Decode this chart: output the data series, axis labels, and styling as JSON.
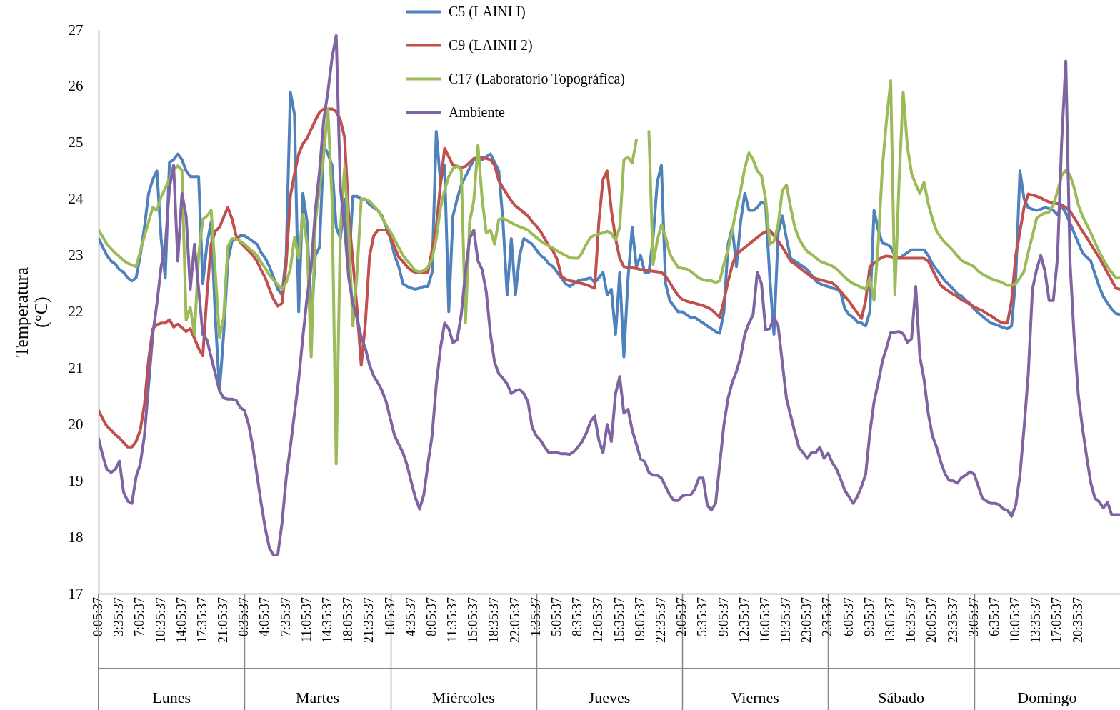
{
  "chart_data": {
    "type": "line",
    "ylabel": "Temperatura (°C)",
    "ylim": [
      17,
      27
    ],
    "yticks": [
      17,
      18,
      19,
      20,
      21,
      22,
      23,
      24,
      25,
      26,
      27
    ],
    "categories": [
      "0:05:37",
      null,
      null,
      null,
      null,
      "3:35:37",
      null,
      null,
      null,
      null,
      "7:05:37",
      null,
      null,
      null,
      null,
      "10:35:37",
      null,
      null,
      null,
      null,
      "14:05:37",
      null,
      null,
      null,
      null,
      "17:35:37",
      null,
      null,
      null,
      null,
      "21:05:37",
      null,
      null,
      null,
      null,
      "0:35:37",
      null,
      null,
      null,
      null,
      "4:05:37",
      null,
      null,
      null,
      null,
      "7:35:37",
      null,
      null,
      null,
      null,
      "11:05:37",
      null,
      null,
      null,
      null,
      "14:35:37",
      null,
      null,
      null,
      null,
      "18:05:37",
      null,
      null,
      null,
      null,
      "21:35:37",
      null,
      null,
      null,
      null,
      "1:05:37",
      null,
      null,
      null,
      null,
      "4:35:37",
      null,
      null,
      null,
      null,
      "8:05:37",
      null,
      null,
      null,
      null,
      "11:35:37",
      null,
      null,
      null,
      null,
      "15:05:37",
      null,
      null,
      null,
      null,
      "18:35:37",
      null,
      null,
      null,
      null,
      "22:05:37",
      null,
      null,
      null,
      null,
      "1:35:37",
      null,
      null,
      null,
      null,
      "5:05:37",
      null,
      null,
      null,
      null,
      "8:35:37",
      null,
      null,
      null,
      null,
      "12:05:37",
      null,
      null,
      null,
      null,
      "15:35:37",
      null,
      null,
      null,
      null,
      "19:05:37",
      null,
      null,
      null,
      null,
      "22:35:37",
      null,
      null,
      null,
      null,
      "2:05:37",
      null,
      null,
      null,
      null,
      "5:35:37",
      null,
      null,
      null,
      null,
      "9:05:37",
      null,
      null,
      null,
      null,
      "12:35:37",
      null,
      null,
      null,
      null,
      "16:05:37",
      null,
      null,
      null,
      null,
      "19:35:37",
      null,
      null,
      null,
      null,
      "23:05:37",
      null,
      null,
      null,
      null,
      "2:35:37",
      null,
      null,
      null,
      null,
      "6:05:37",
      null,
      null,
      null,
      null,
      "9:35:37",
      null,
      null,
      null,
      null,
      "13:05:37",
      null,
      null,
      null,
      null,
      "16:35:37",
      null,
      null,
      null,
      null,
      "20:05:37",
      null,
      null,
      null,
      null,
      "23:35:37",
      null,
      null,
      null,
      null,
      "3:05:37",
      null,
      null,
      null,
      null,
      "6:35:37",
      null,
      null,
      null,
      null,
      "10:05:37",
      null,
      null,
      null,
      null,
      "13:35:37",
      null,
      null,
      null,
      null,
      "17:05:37",
      null,
      null,
      null,
      null,
      "20:35:37",
      null,
      null,
      null,
      null,
      null,
      null,
      null,
      null,
      null,
      null
    ],
    "annotations": [
      "Lunes",
      "Martes",
      "Miércoles",
      "Jueves",
      "Viernes",
      "Sábado",
      "Domingo"
    ],
    "legend": "top",
    "line_style": "solid",
    "series": [
      {
        "name": "C5 (LAINI I)",
        "color": "#4f81bd",
        "values": [
          23.3,
          23.15,
          23.0,
          22.9,
          22.85,
          22.75,
          22.7,
          22.6,
          22.55,
          22.6,
          23.0,
          23.5,
          24.1,
          24.35,
          24.5,
          23.3,
          22.6,
          24.65,
          24.7,
          24.8,
          24.7,
          24.5,
          24.4,
          24.4,
          24.4,
          22.5,
          23.2,
          23.6,
          21.9,
          20.6,
          21.6,
          22.9,
          23.25,
          23.3,
          23.35,
          23.35,
          23.3,
          23.25,
          23.2,
          23.05,
          22.95,
          22.8,
          22.6,
          22.4,
          22.3,
          23.0,
          25.9,
          25.5,
          22.0,
          24.1,
          23.6,
          21.8,
          23.0,
          23.15,
          24.95,
          24.8,
          24.6,
          23.5,
          23.3,
          24.0,
          22.8,
          24.05,
          24.05,
          24.0,
          24.0,
          23.9,
          23.85,
          23.8,
          23.7,
          23.5,
          23.3,
          23.0,
          22.8,
          22.5,
          22.45,
          22.42,
          22.4,
          22.42,
          22.45,
          22.45,
          22.7,
          25.2,
          24.3,
          24.6,
          22.0,
          23.7,
          24.0,
          24.25,
          24.4,
          24.55,
          24.7,
          24.7,
          24.7,
          24.75,
          24.8,
          24.65,
          24.5,
          23.6,
          22.3,
          23.3,
          22.3,
          23.0,
          23.3,
          23.25,
          23.2,
          23.1,
          23.0,
          22.95,
          22.85,
          22.8,
          22.7,
          22.6,
          22.5,
          22.45,
          22.5,
          22.55,
          22.57,
          22.58,
          22.6,
          22.52,
          22.6,
          22.7,
          22.3,
          22.4,
          21.6,
          22.7,
          21.2,
          22.6,
          23.5,
          22.8,
          23.0,
          22.7,
          22.7,
          23.3,
          24.3,
          24.6,
          22.5,
          22.2,
          22.1,
          22.0,
          22.0,
          21.95,
          21.9,
          21.9,
          21.85,
          21.8,
          21.75,
          21.7,
          21.65,
          21.62,
          22.0,
          23.2,
          23.5,
          22.8,
          23.6,
          24.1,
          23.8,
          23.8,
          23.85,
          23.95,
          23.9,
          22.6,
          21.6,
          23.4,
          23.7,
          23.3,
          22.95,
          22.9,
          22.85,
          22.8,
          22.75,
          22.65,
          22.55,
          22.5,
          22.47,
          22.45,
          22.42,
          22.4,
          22.35,
          22.05,
          21.95,
          21.9,
          21.82,
          21.8,
          21.75,
          22.0,
          23.8,
          23.45,
          23.22,
          23.2,
          23.15,
          23.0,
          22.95,
          23.0,
          23.05,
          23.1,
          23.1,
          23.1,
          23.1,
          23.0,
          22.85,
          22.75,
          22.65,
          22.55,
          22.48,
          22.4,
          22.32,
          22.28,
          22.2,
          22.15,
          22.05,
          21.98,
          21.92,
          21.86,
          21.8,
          21.78,
          21.75,
          21.72,
          21.7,
          21.75,
          22.6,
          24.5,
          24.0,
          23.85,
          23.82,
          23.8,
          23.82,
          23.85,
          23.83,
          23.8,
          23.72,
          23.88,
          23.75,
          23.58,
          23.4,
          23.22,
          23.05,
          22.97,
          22.9,
          22.67,
          22.45,
          22.27,
          22.15,
          22.05,
          21.97,
          21.95
        ]
      },
      {
        "name": "C9 (LAINII 2)",
        "color": "#c0504d",
        "values": [
          20.25,
          20.1,
          19.97,
          19.9,
          19.82,
          19.76,
          19.68,
          19.6,
          19.6,
          19.7,
          19.9,
          20.35,
          21.15,
          21.7,
          21.77,
          21.8,
          21.8,
          21.86,
          21.73,
          21.78,
          21.72,
          21.65,
          21.7,
          21.53,
          21.35,
          21.22,
          22.3,
          23.2,
          23.43,
          23.5,
          23.68,
          23.85,
          23.65,
          23.35,
          23.23,
          23.15,
          23.08,
          23.0,
          22.9,
          22.74,
          22.6,
          22.4,
          22.22,
          22.1,
          22.15,
          22.85,
          24.05,
          24.45,
          24.8,
          24.98,
          25.08,
          25.24,
          25.4,
          25.54,
          25.6,
          25.6,
          25.6,
          25.55,
          25.4,
          25.1,
          23.7,
          22.9,
          22.05,
          21.05,
          21.8,
          22.99,
          23.35,
          23.45,
          23.45,
          23.45,
          23.33,
          23.15,
          22.97,
          22.89,
          22.8,
          22.73,
          22.7,
          22.7,
          22.7,
          22.7,
          23.1,
          23.5,
          24.25,
          24.9,
          24.75,
          24.6,
          24.58,
          24.56,
          24.58,
          24.65,
          24.72,
          24.74,
          24.73,
          24.72,
          24.7,
          24.6,
          24.33,
          24.2,
          24.08,
          23.97,
          23.88,
          23.82,
          23.76,
          23.7,
          23.6,
          23.52,
          23.43,
          23.3,
          23.17,
          23.08,
          22.93,
          22.63,
          22.58,
          22.55,
          22.54,
          22.52,
          22.5,
          22.48,
          22.45,
          22.42,
          23.6,
          24.35,
          24.5,
          23.8,
          23.3,
          22.95,
          22.8,
          22.79,
          22.78,
          22.77,
          22.75,
          22.74,
          22.73,
          22.72,
          22.71,
          22.7,
          22.63,
          22.52,
          22.4,
          22.29,
          22.22,
          22.19,
          22.17,
          22.15,
          22.13,
          22.11,
          22.08,
          22.04,
          21.97,
          21.9,
          22.2,
          22.54,
          22.83,
          23.03,
          23.08,
          23.14,
          23.2,
          23.26,
          23.32,
          23.38,
          23.42,
          23.45,
          23.35,
          23.26,
          23.15,
          23.03,
          22.9,
          22.85,
          22.79,
          22.73,
          22.68,
          22.62,
          22.59,
          22.57,
          22.55,
          22.53,
          22.51,
          22.45,
          22.36,
          22.27,
          22.19,
          22.08,
          21.98,
          21.88,
          22.2,
          22.8,
          22.86,
          22.92,
          22.97,
          22.99,
          22.98,
          22.96,
          22.95,
          22.95,
          22.95,
          22.95,
          22.95,
          22.95,
          22.95,
          22.9,
          22.75,
          22.6,
          22.47,
          22.41,
          22.36,
          22.31,
          22.27,
          22.21,
          22.18,
          22.13,
          22.09,
          22.05,
          22.02,
          21.97,
          21.93,
          21.88,
          21.83,
          21.8,
          21.8,
          22.2,
          23.0,
          23.42,
          23.86,
          24.09,
          24.07,
          24.05,
          24.02,
          23.98,
          23.95,
          23.93,
          23.92,
          23.9,
          23.85,
          23.79,
          23.67,
          23.55,
          23.43,
          23.32,
          23.2,
          23.08,
          22.96,
          22.83,
          22.69,
          22.56,
          22.42,
          22.4
        ]
      },
      {
        "name": "C17 (Laboratorio Topográfica)",
        "color": "#9bbb59",
        "values": [
          23.45,
          23.33,
          23.2,
          23.12,
          23.04,
          22.98,
          22.91,
          22.86,
          22.83,
          22.8,
          23.07,
          23.34,
          23.6,
          23.85,
          23.8,
          24.04,
          24.19,
          24.36,
          24.52,
          24.59,
          24.51,
          21.85,
          22.08,
          21.6,
          23.0,
          23.64,
          23.7,
          23.8,
          22.7,
          21.55,
          21.9,
          23.16,
          23.3,
          23.29,
          23.25,
          23.2,
          23.13,
          23.07,
          23.0,
          22.88,
          22.77,
          22.65,
          22.56,
          22.48,
          22.4,
          22.52,
          22.76,
          23.32,
          22.95,
          23.73,
          23.2,
          21.2,
          23.6,
          24.2,
          24.8,
          25.6,
          24.0,
          19.3,
          23.45,
          24.55,
          23.4,
          21.75,
          22.7,
          24.0,
          24.0,
          23.96,
          23.88,
          23.8,
          23.67,
          23.54,
          23.42,
          23.28,
          23.14,
          23.0,
          22.91,
          22.82,
          22.73,
          22.71,
          22.73,
          22.79,
          22.94,
          23.3,
          23.84,
          24.16,
          24.4,
          24.54,
          24.59,
          24.51,
          21.8,
          23.59,
          23.97,
          24.95,
          24.0,
          23.4,
          23.45,
          23.2,
          23.64,
          23.66,
          23.62,
          23.58,
          23.54,
          23.51,
          23.48,
          23.45,
          23.38,
          23.32,
          23.26,
          23.21,
          23.17,
          23.13,
          23.08,
          23.04,
          23.0,
          22.96,
          22.95,
          22.95,
          23.05,
          23.2,
          23.32,
          23.36,
          23.38,
          23.4,
          23.43,
          23.39,
          23.27,
          23.5,
          24.7,
          24.74,
          24.64,
          25.05,
          null,
          null,
          25.2,
          22.84,
          23.26,
          23.55,
          23.33,
          23.03,
          22.9,
          22.79,
          22.77,
          22.76,
          22.72,
          22.66,
          22.6,
          22.57,
          22.55,
          22.55,
          22.52,
          22.55,
          22.85,
          23.1,
          23.45,
          23.84,
          24.15,
          24.55,
          24.82,
          24.7,
          24.5,
          24.42,
          24.0,
          23.2,
          23.25,
          23.55,
          24.15,
          24.25,
          23.85,
          23.5,
          23.3,
          23.17,
          23.07,
          23.02,
          22.96,
          22.9,
          22.87,
          22.84,
          22.81,
          22.76,
          22.69,
          22.61,
          22.55,
          22.5,
          22.47,
          22.43,
          22.4,
          22.6,
          22.2,
          23.2,
          24.55,
          25.4,
          26.1,
          22.3,
          24.3,
          25.9,
          24.93,
          24.46,
          24.26,
          24.1,
          24.3,
          23.92,
          23.65,
          23.43,
          23.32,
          23.23,
          23.16,
          23.08,
          22.99,
          22.91,
          22.87,
          22.84,
          22.8,
          22.72,
          22.67,
          22.63,
          22.59,
          22.56,
          22.54,
          22.51,
          22.47,
          22.47,
          22.5,
          22.6,
          22.72,
          23.06,
          23.35,
          23.66,
          23.72,
          23.75,
          23.77,
          23.9,
          24.13,
          24.42,
          24.51,
          24.43,
          24.2,
          23.9,
          23.7,
          23.55,
          23.4,
          23.23,
          23.07,
          22.93,
          22.8,
          22.7,
          22.6,
          22.6
        ]
      },
      {
        "name": "Ambiente",
        "color": "#8064a2",
        "values": [
          19.75,
          19.45,
          19.2,
          19.15,
          19.2,
          19.35,
          18.8,
          18.64,
          18.6,
          19.07,
          19.3,
          19.8,
          20.7,
          21.6,
          22.15,
          22.8,
          23.15,
          24.2,
          24.6,
          22.9,
          24.1,
          23.7,
          22.4,
          23.2,
          22.4,
          21.6,
          21.5,
          21.2,
          20.9,
          20.6,
          20.47,
          20.45,
          20.45,
          20.43,
          20.3,
          20.25,
          20.0,
          19.6,
          19.1,
          18.6,
          18.15,
          17.8,
          17.68,
          17.7,
          18.25,
          19.05,
          19.6,
          20.2,
          20.8,
          21.55,
          22.25,
          22.8,
          23.8,
          24.5,
          25.4,
          25.9,
          26.5,
          26.9,
          24.2,
          23.5,
          22.6,
          22.15,
          21.88,
          21.55,
          21.35,
          21.05,
          20.86,
          20.74,
          20.6,
          20.4,
          20.1,
          19.8,
          19.65,
          19.5,
          19.28,
          18.98,
          18.7,
          18.5,
          18.75,
          19.3,
          19.8,
          20.7,
          21.35,
          21.8,
          21.7,
          21.45,
          21.5,
          21.95,
          22.7,
          23.3,
          23.45,
          22.9,
          22.75,
          22.35,
          21.6,
          21.1,
          20.9,
          20.82,
          20.72,
          20.55,
          20.6,
          20.62,
          20.55,
          20.4,
          19.95,
          19.8,
          19.72,
          19.6,
          19.5,
          19.5,
          19.5,
          19.48,
          19.48,
          19.47,
          19.52,
          19.6,
          19.7,
          19.85,
          20.05,
          20.15,
          19.72,
          19.5,
          20.0,
          19.7,
          20.55,
          20.85,
          20.2,
          20.27,
          19.9,
          19.65,
          19.39,
          19.34,
          19.15,
          19.1,
          19.1,
          19.05,
          18.9,
          18.75,
          18.65,
          18.65,
          18.73,
          18.75,
          18.75,
          18.85,
          19.05,
          19.05,
          18.57,
          18.48,
          18.6,
          19.3,
          20.0,
          20.47,
          20.75,
          20.94,
          21.2,
          21.6,
          21.8,
          21.95,
          22.7,
          22.5,
          21.68,
          21.7,
          21.9,
          21.75,
          21.1,
          20.46,
          20.16,
          19.86,
          19.59,
          19.5,
          19.4,
          19.5,
          19.5,
          19.6,
          19.4,
          19.49,
          19.32,
          19.21,
          19.03,
          18.83,
          18.72,
          18.6,
          18.72,
          18.9,
          19.12,
          19.85,
          20.4,
          20.74,
          21.12,
          21.36,
          21.63,
          21.64,
          21.65,
          21.61,
          21.46,
          21.52,
          22.45,
          21.2,
          20.8,
          20.2,
          19.8,
          19.6,
          19.34,
          19.13,
          19.01,
          19.0,
          18.96,
          19.06,
          19.1,
          19.16,
          19.12,
          18.91,
          18.69,
          18.64,
          18.6,
          18.6,
          18.58,
          18.5,
          18.48,
          18.37,
          18.57,
          19.1,
          19.95,
          20.9,
          22.4,
          22.75,
          23.0,
          22.72,
          22.2,
          22.2,
          22.95,
          25.0,
          26.45,
          22.9,
          21.55,
          20.52,
          19.94,
          19.43,
          18.96,
          18.69,
          18.63,
          18.52,
          18.62,
          18.4,
          18.4,
          18.4
        ]
      }
    ]
  }
}
